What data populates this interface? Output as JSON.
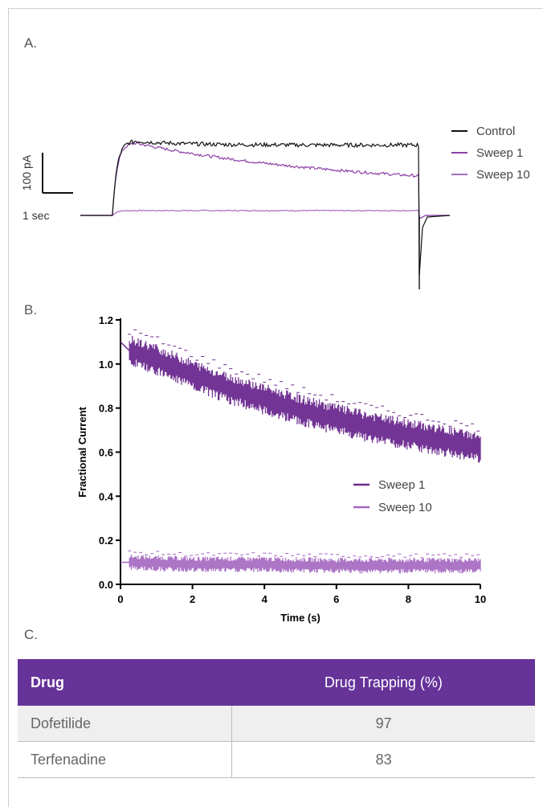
{
  "panels": {
    "a": "A.",
    "b": "B.",
    "c": "C."
  },
  "chart_data": [
    {
      "type": "line",
      "panel": "A.",
      "scale_bars": {
        "current": "100 pA",
        "time": "1 sec"
      },
      "legend_position": "right",
      "series": [
        {
          "name": "Control",
          "color": "#111111",
          "baseline": 0,
          "peak": 185,
          "steady": 175,
          "tail": -150
        },
        {
          "name": "Sweep 1",
          "color": "#8b3fa6",
          "baseline": 0,
          "peak": 180,
          "end": 98
        },
        {
          "name": "Sweep 10",
          "color": "#a46cc0",
          "baseline": 0,
          "steady": 12
        }
      ]
    },
    {
      "type": "line",
      "panel": "B.",
      "xlabel": "Time (s)",
      "ylabel": "Fractional Current",
      "xlim": [
        0,
        10
      ],
      "ylim": [
        0,
        1.2
      ],
      "xticks": [
        "0",
        "2",
        "4",
        "6",
        "8",
        "10"
      ],
      "yticks": [
        "0.0",
        "0.2",
        "0.4",
        "0.6",
        "0.8",
        "1.0",
        "1.2"
      ],
      "legend_position": "center-right",
      "series": [
        {
          "name": "Sweep 1",
          "color": "#6c2a8f",
          "x": [
            0.25,
            1,
            2,
            3,
            4,
            5,
            6,
            7,
            8,
            9,
            10
          ],
          "y": [
            1.06,
            1.02,
            0.95,
            0.89,
            0.84,
            0.79,
            0.75,
            0.71,
            0.68,
            0.65,
            0.62
          ]
        },
        {
          "name": "Sweep 10",
          "color": "#a466c0",
          "x": [
            0.25,
            2,
            4,
            6,
            8,
            10
          ],
          "y": [
            0.1,
            0.09,
            0.09,
            0.085,
            0.085,
            0.085
          ]
        }
      ]
    },
    {
      "type": "table",
      "panel": "C.",
      "columns": [
        "Drug",
        "Drug Trapping (%)"
      ],
      "rows": [
        [
          "Dofetilide",
          "97"
        ],
        [
          "Terfenadine",
          "83"
        ]
      ]
    }
  ]
}
